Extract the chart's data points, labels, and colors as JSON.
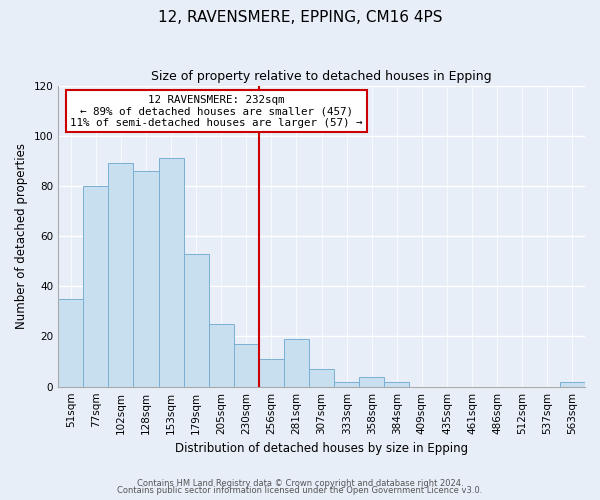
{
  "title": "12, RAVENSMERE, EPPING, CM16 4PS",
  "subtitle": "Size of property relative to detached houses in Epping",
  "xlabel": "Distribution of detached houses by size in Epping",
  "ylabel": "Number of detached properties",
  "bar_labels": [
    "51sqm",
    "77sqm",
    "102sqm",
    "128sqm",
    "153sqm",
    "179sqm",
    "205sqm",
    "230sqm",
    "256sqm",
    "281sqm",
    "307sqm",
    "333sqm",
    "358sqm",
    "384sqm",
    "409sqm",
    "435sqm",
    "461sqm",
    "486sqm",
    "512sqm",
    "537sqm",
    "563sqm"
  ],
  "bar_values": [
    35,
    80,
    89,
    86,
    91,
    53,
    25,
    17,
    11,
    19,
    7,
    2,
    4,
    2,
    0,
    0,
    0,
    0,
    0,
    0,
    2
  ],
  "bar_color": "#c8dff0",
  "bar_edge_color": "#7aafd4",
  "marker_index": 7,
  "marker_color": "#cc0000",
  "annotation_title": "12 RAVENSMERE: 232sqm",
  "annotation_line1": "← 89% of detached houses are smaller (457)",
  "annotation_line2": "11% of semi-detached houses are larger (57) →",
  "annotation_box_edge": "#cc0000",
  "ylim": [
    0,
    120
  ],
  "yticks": [
    0,
    20,
    40,
    60,
    80,
    100,
    120
  ],
  "footer1": "Contains HM Land Registry data © Crown copyright and database right 2024.",
  "footer2": "Contains public sector information licensed under the Open Government Licence v3.0.",
  "background_color": "#e8eef8",
  "plot_bg_color": "#e8eef8"
}
